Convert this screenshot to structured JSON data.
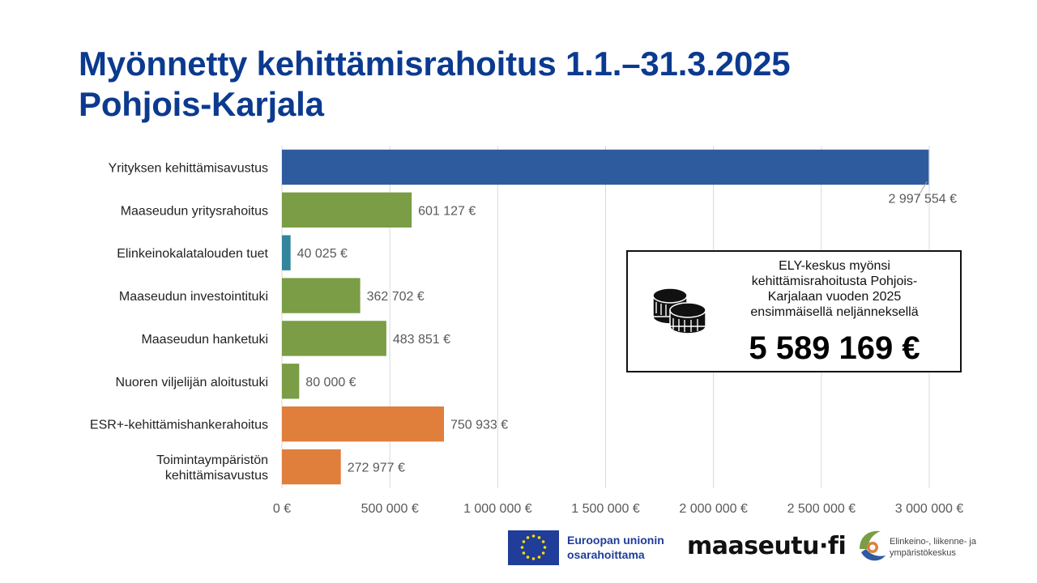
{
  "title": {
    "line1": "Myönnetty kehittämisrahoitus 1.1.–31.3.2025",
    "line2": "Pohjois-Karjala"
  },
  "chart_data": {
    "type": "bar",
    "orientation": "horizontal",
    "title": "",
    "xlabel": "",
    "ylabel": "",
    "xlim": [
      0,
      3000000
    ],
    "grid": true,
    "legend": "none",
    "x_ticks": [
      {
        "value": 0,
        "label": "0 €"
      },
      {
        "value": 500000,
        "label": "500 000 €"
      },
      {
        "value": 1000000,
        "label": "1 000 000 €"
      },
      {
        "value": 1500000,
        "label": "1 500 000 €"
      },
      {
        "value": 2000000,
        "label": "2 000 000 €"
      },
      {
        "value": 2500000,
        "label": "2 500 000 €"
      },
      {
        "value": 3000000,
        "label": "3 000 000 €"
      }
    ],
    "categories": [
      [
        "Yrityksen kehittämisavustus"
      ],
      [
        "Maaseudun yritysrahoitus"
      ],
      [
        "Elinkeinokalatalouden tuet"
      ],
      [
        "Maaseudun investointituki"
      ],
      [
        "Maaseudun hanketuki"
      ],
      [
        "Nuoren viljelijän aloitustuki"
      ],
      [
        "ESR+-kehittämishankerahoitus"
      ],
      [
        "Toimintaympäristön",
        "kehittämisavustus"
      ]
    ],
    "values": [
      2997554,
      601127,
      40025,
      362702,
      483851,
      80000,
      750933,
      272977
    ],
    "data_labels": [
      "2 997 554 €",
      "601 127 €",
      "40 025 €",
      "362 702 €",
      "483 851 €",
      "80 000 €",
      "750 933 €",
      "272 977 €"
    ],
    "colors": [
      "#2e5b9e",
      "#7a9d45",
      "#31859c",
      "#7a9d45",
      "#7a9d45",
      "#7a9d45",
      "#e07e3c",
      "#e07e3c"
    ]
  },
  "callout": {
    "text": "ELY-keskus myönsi kehittämisrahoitusta Pohjois-Karjalaan vuoden 2025 ensimmäisellä neljänneksellä",
    "total": "5 589 169 €",
    "icon": "coins-icon"
  },
  "footer": {
    "eu_text_line1": "Euroopan unionin",
    "eu_text_line2": "osarahoittama",
    "maaseutu": "maaseutu·fi",
    "ely_line1": "Elinkeino-, liikenne- ja",
    "ely_line2": "ympäristökeskus"
  }
}
